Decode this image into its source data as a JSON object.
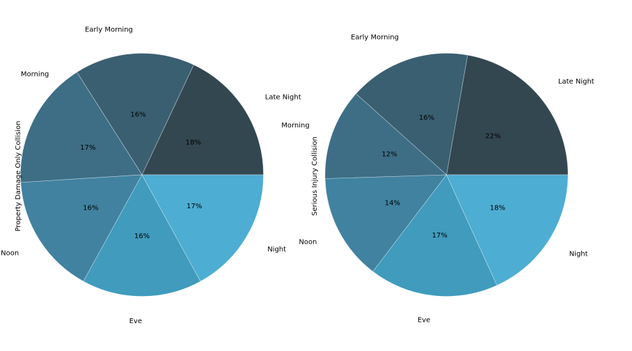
{
  "figure": {
    "background_color": "#ffffff",
    "text_color": "#000000"
  },
  "chart_data": [
    {
      "type": "pie",
      "ylabel": "Property Damage Only Collision",
      "start_angle_deg": 0,
      "direction": "counterclockwise",
      "legend": "none",
      "slices": [
        {
          "label": "Late Night",
          "value": 18,
          "pct_label": "18%",
          "color": "#334750"
        },
        {
          "label": "Early Morning",
          "value": 16,
          "pct_label": "16%",
          "color": "#3A5F71"
        },
        {
          "label": "Morning",
          "value": 17,
          "pct_label": "17%",
          "color": "#3D6E86",
          "label_offset": [
            53,
            -50
          ]
        },
        {
          "label": "Noon",
          "value": 16,
          "pct_label": "16%",
          "color": "#4082A0"
        },
        {
          "label": "Eve",
          "value": 16,
          "pct_label": "16%",
          "color": "#409BBD"
        },
        {
          "label": "Night",
          "value": 17,
          "pct_label": "17%",
          "color": "#4DADD2"
        }
      ]
    },
    {
      "type": "pie",
      "ylabel": "Serious Injury Collision",
      "start_angle_deg": 0,
      "direction": "counterclockwise",
      "legend": "none",
      "slices": [
        {
          "label": "Late Night",
          "value": 22,
          "pct_label": "22%",
          "color": "#334750"
        },
        {
          "label": "Early Morning",
          "value": 16,
          "pct_label": "16%",
          "color": "#3A5F71"
        },
        {
          "label": "Morning",
          "value": 12,
          "pct_label": "12%",
          "color": "#3D6E86"
        },
        {
          "label": "Noon",
          "value": 14,
          "pct_label": "14%",
          "color": "#4082A0"
        },
        {
          "label": "Eve",
          "value": 17,
          "pct_label": "17%",
          "color": "#409BBD"
        },
        {
          "label": "Night",
          "value": 18,
          "pct_label": "18%",
          "color": "#4DADD2"
        }
      ]
    }
  ]
}
